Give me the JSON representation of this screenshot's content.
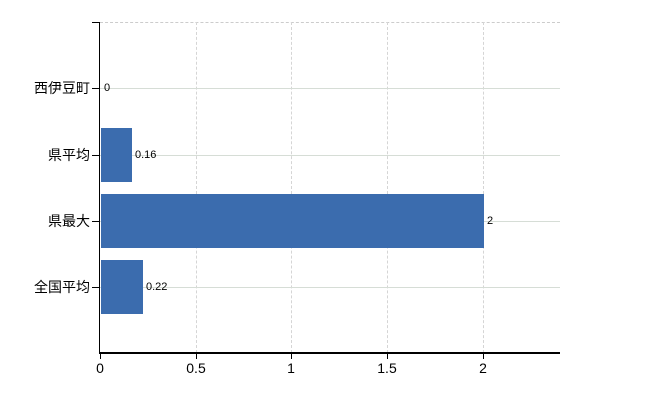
{
  "chart_data": {
    "type": "bar",
    "orientation": "horizontal",
    "title": "",
    "categories": [
      "西伊豆町",
      "県平均",
      "県最大",
      "全国平均"
    ],
    "values": [
      0,
      0.16,
      2,
      0.22
    ],
    "value_labels": [
      "0",
      "0.16",
      "2",
      "0.22"
    ],
    "x_ticks": [
      0,
      0.5,
      1,
      1.5,
      2
    ],
    "x_tick_labels": [
      "0",
      "0.5",
      "1",
      "1.5",
      "2"
    ],
    "xlim": [
      0,
      2.4
    ],
    "grid": true,
    "legend": false,
    "colors": {
      "bar": "#3b6cae",
      "h_gridline": "#d6ddd6",
      "v_gridline": "#d5d5d5",
      "top_border": "#cccccc",
      "axis": "#000000",
      "text": "#000000",
      "background": "#ffffff"
    }
  }
}
